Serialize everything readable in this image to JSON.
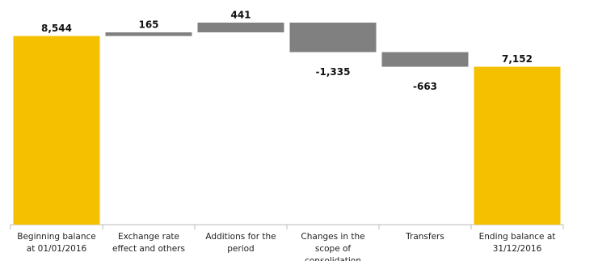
{
  "chart_data": {
    "type": "waterfall",
    "categories": [
      "Beginning balance at 01/01/2016",
      "Exchange rate effect and others",
      "Additions for the period",
      "Changes in the scope of consolidation",
      "Transfers",
      "Ending balance at 31/12/2016"
    ],
    "values": [
      8544,
      165,
      441,
      -1335,
      -663,
      7152
    ],
    "value_labels": [
      "8,544",
      "165",
      "441",
      "-1,335",
      "-663",
      "7,152"
    ],
    "colors": [
      "#f5c000",
      "#808080",
      "#808080",
      "#808080",
      "#808080",
      "#f5c000"
    ]
  }
}
